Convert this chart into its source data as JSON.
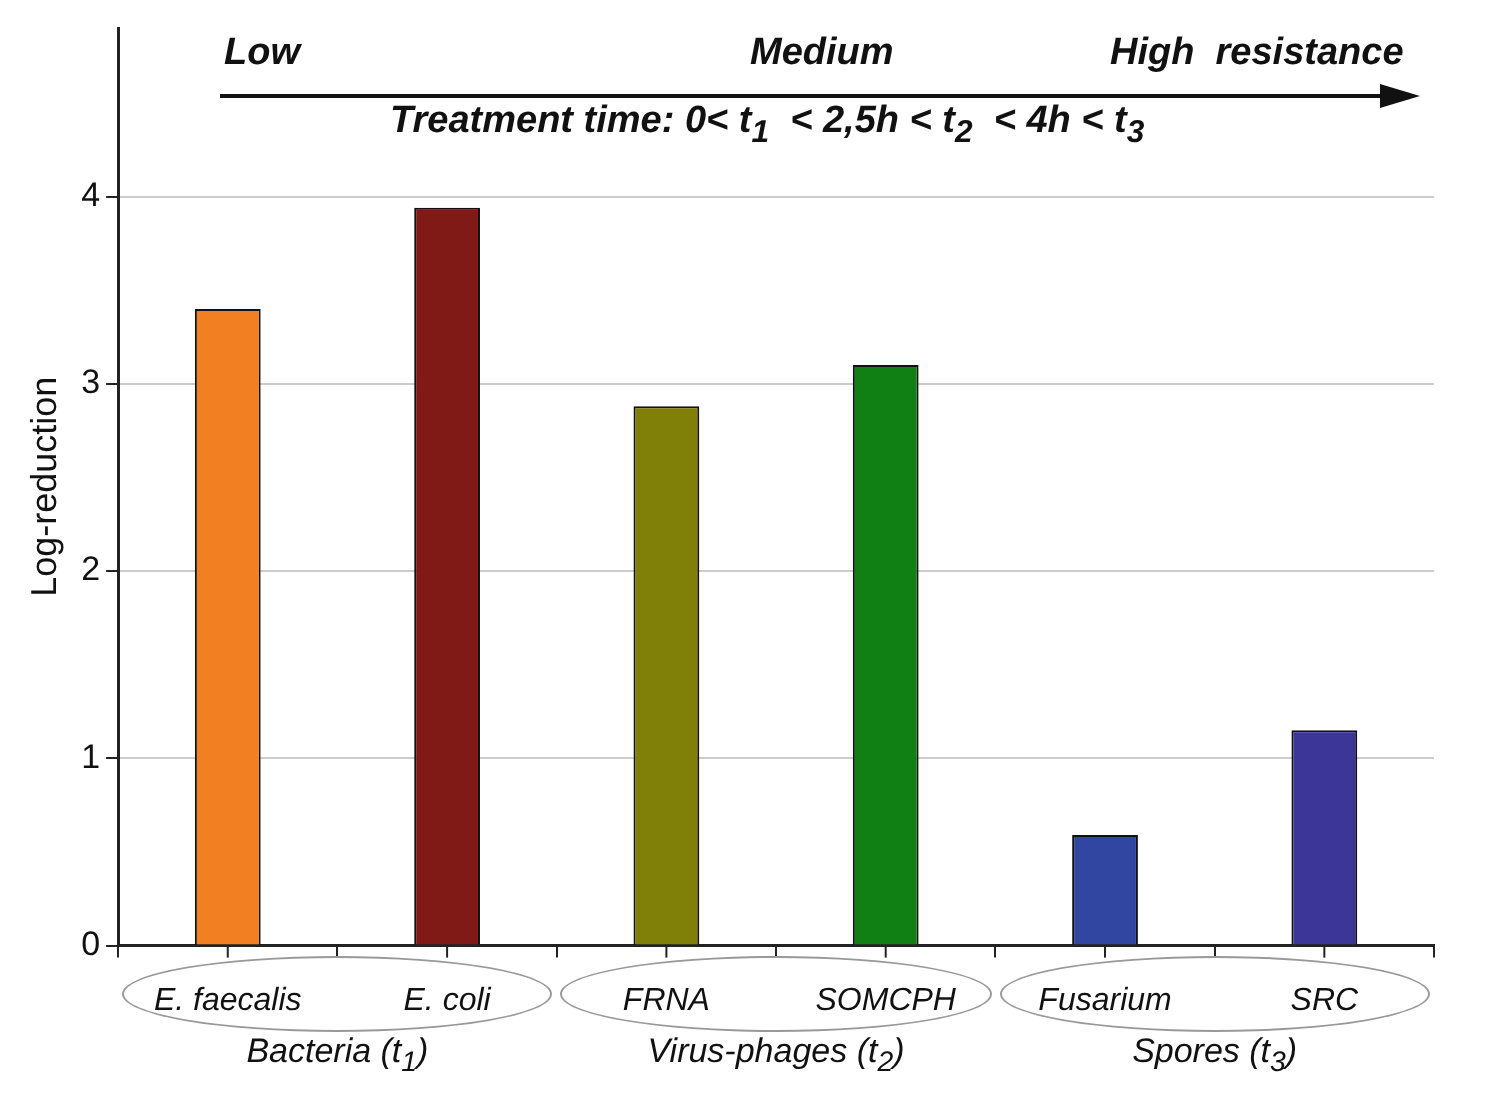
{
  "chart_data": {
    "type": "bar",
    "ylabel": "Log-reduction",
    "categories": [
      "E. faecalis",
      "E. coli",
      "FRNA",
      "SOMCPH",
      "Fusarium",
      "SRC"
    ],
    "values": [
      3.4,
      3.94,
      2.88,
      3.1,
      0.59,
      1.15
    ],
    "colors": [
      "#f28022",
      "#801a16",
      "#807f08",
      "#108015",
      "#3046a0",
      "#3b3698"
    ],
    "ylim": [
      0,
      4.9
    ],
    "yticks": [
      0,
      1,
      2,
      3,
      4
    ],
    "grid": "y",
    "legend": false,
    "annotations": [
      "Low",
      "Medium",
      "High  resistance",
      "Treatment time: 0< t$_{1}$  < 2,5h < t$_{2}$  < 4h < t$_{3}$",
      "Bacteria (t$_{1}$)",
      "Virus-phages (t$_{2}$)",
      "Spores (t$_{3}$)"
    ]
  }
}
